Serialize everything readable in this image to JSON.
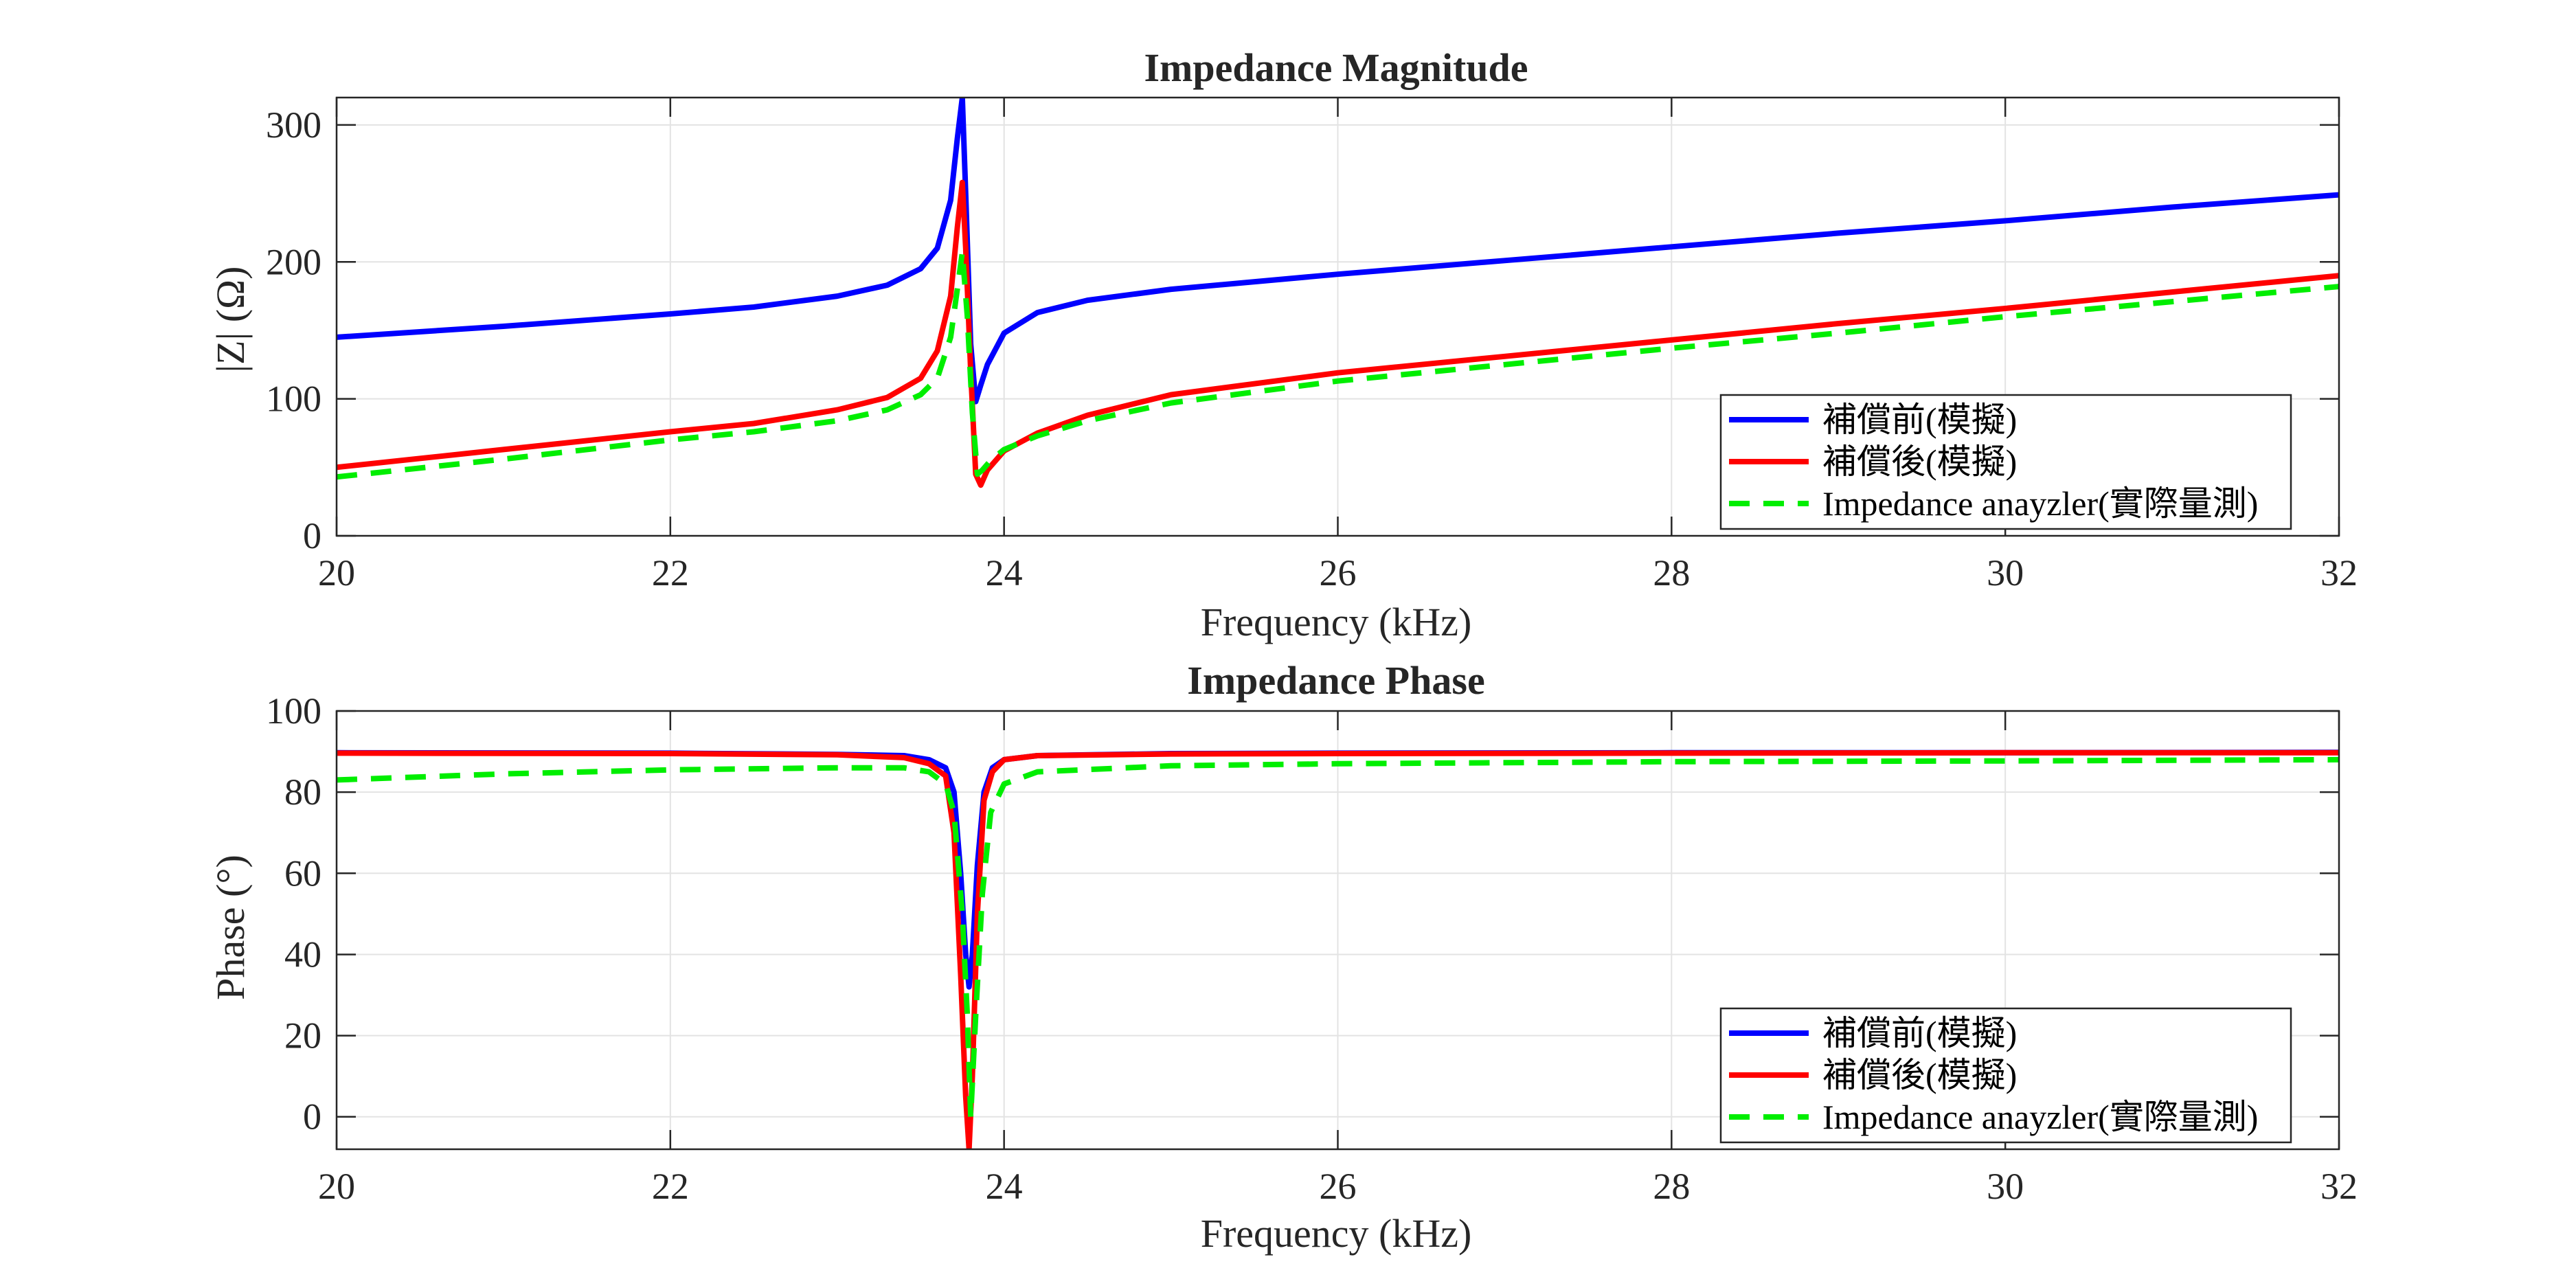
{
  "figure": {
    "background": "#ffffff"
  },
  "chart_data": [
    {
      "type": "line",
      "title": "Impedance Magnitude",
      "xlabel": "Frequency (kHz)",
      "ylabel": "|Z| (Ω)",
      "xlim": [
        20,
        32
      ],
      "ylim": [
        0,
        320
      ],
      "xticks": [
        20,
        22,
        24,
        26,
        28,
        30,
        32
      ],
      "yticks": [
        0,
        100,
        200,
        300
      ],
      "grid": true,
      "legend_position": "bottom-right",
      "series": [
        {
          "name": "補償前(模擬)",
          "color": "#0000ff",
          "dash": "solid",
          "points": [
            [
              20,
              145
            ],
            [
              21,
              153
            ],
            [
              22,
              162
            ],
            [
              22.5,
              167
            ],
            [
              23,
              175
            ],
            [
              23.3,
              183
            ],
            [
              23.5,
              195
            ],
            [
              23.6,
              210
            ],
            [
              23.68,
              245
            ],
            [
              23.72,
              290
            ],
            [
              23.75,
              320
            ],
            [
              23.77,
              250
            ],
            [
              23.8,
              140
            ],
            [
              23.83,
              98
            ],
            [
              23.86,
              110
            ],
            [
              23.9,
              125
            ],
            [
              24,
              148
            ],
            [
              24.2,
              163
            ],
            [
              24.5,
              172
            ],
            [
              25,
              180
            ],
            [
              26,
              191
            ],
            [
              27,
              201
            ],
            [
              28,
              211
            ],
            [
              29,
              221
            ],
            [
              30,
              230
            ],
            [
              31,
              240
            ],
            [
              32,
              249
            ]
          ]
        },
        {
          "name": "補償後(模擬)",
          "color": "#ff0000",
          "dash": "solid",
          "points": [
            [
              20,
              50
            ],
            [
              21,
              63
            ],
            [
              22,
              76
            ],
            [
              22.5,
              82
            ],
            [
              23,
              92
            ],
            [
              23.3,
              101
            ],
            [
              23.5,
              115
            ],
            [
              23.6,
              135
            ],
            [
              23.68,
              175
            ],
            [
              23.72,
              225
            ],
            [
              23.75,
              258
            ],
            [
              23.77,
              210
            ],
            [
              23.8,
              120
            ],
            [
              23.83,
              45
            ],
            [
              23.86,
              37
            ],
            [
              23.9,
              48
            ],
            [
              24,
              62
            ],
            [
              24.2,
              75
            ],
            [
              24.5,
              88
            ],
            [
              25,
              103
            ],
            [
              26,
              119
            ],
            [
              27,
              131
            ],
            [
              28,
              143
            ],
            [
              29,
              155
            ],
            [
              30,
              166
            ],
            [
              31,
              178
            ],
            [
              32,
              190
            ]
          ]
        },
        {
          "name": "Impedance anayzler(實際量測)",
          "color": "#00ee00",
          "dash": "dashed",
          "points": [
            [
              20,
              43
            ],
            [
              21,
              56
            ],
            [
              22,
              70
            ],
            [
              22.5,
              76
            ],
            [
              23,
              84
            ],
            [
              23.3,
              92
            ],
            [
              23.5,
              103
            ],
            [
              23.6,
              115
            ],
            [
              23.68,
              145
            ],
            [
              23.72,
              180
            ],
            [
              23.75,
              207
            ],
            [
              23.78,
              160
            ],
            [
              23.81,
              90
            ],
            [
              23.84,
              45
            ],
            [
              23.87,
              48
            ],
            [
              23.92,
              55
            ],
            [
              24,
              63
            ],
            [
              24.2,
              73
            ],
            [
              24.5,
              84
            ],
            [
              25,
              97
            ],
            [
              26,
              113
            ],
            [
              27,
              125
            ],
            [
              28,
              137
            ],
            [
              29,
              148
            ],
            [
              30,
              160
            ],
            [
              31,
              171
            ],
            [
              32,
              182
            ]
          ]
        }
      ]
    },
    {
      "type": "line",
      "title": "Impedance Phase",
      "xlabel": "Frequency (kHz)",
      "ylabel": "Phase (°)",
      "xlim": [
        20,
        32
      ],
      "ylim": [
        -8,
        100
      ],
      "xticks": [
        20,
        22,
        24,
        26,
        28,
        30,
        32
      ],
      "yticks": [
        0,
        20,
        40,
        60,
        80,
        100
      ],
      "grid": true,
      "legend_position": "bottom-right",
      "series": [
        {
          "name": "補償前(模擬)",
          "color": "#0000ff",
          "dash": "solid",
          "points": [
            [
              20,
              89.7
            ],
            [
              22,
              89.6
            ],
            [
              23,
              89.3
            ],
            [
              23.4,
              89
            ],
            [
              23.55,
              88
            ],
            [
              23.65,
              86
            ],
            [
              23.7,
              80
            ],
            [
              23.74,
              60
            ],
            [
              23.77,
              40
            ],
            [
              23.79,
              32
            ],
            [
              23.81,
              40
            ],
            [
              23.84,
              62
            ],
            [
              23.88,
              80
            ],
            [
              23.93,
              86
            ],
            [
              24,
              88
            ],
            [
              24.2,
              89
            ],
            [
              25,
              89.5
            ],
            [
              26,
              89.6
            ],
            [
              28,
              89.7
            ],
            [
              30,
              89.7
            ],
            [
              32,
              89.8
            ]
          ]
        },
        {
          "name": "補償後(模擬)",
          "color": "#ff0000",
          "dash": "solid",
          "points": [
            [
              20,
              89.6
            ],
            [
              22,
              89.5
            ],
            [
              23,
              89.2
            ],
            [
              23.4,
              88.5
            ],
            [
              23.55,
              87
            ],
            [
              23.65,
              84
            ],
            [
              23.7,
              70
            ],
            [
              23.74,
              35
            ],
            [
              23.77,
              5
            ],
            [
              23.79,
              -8
            ],
            [
              23.81,
              10
            ],
            [
              23.84,
              50
            ],
            [
              23.88,
              78
            ],
            [
              23.93,
              85
            ],
            [
              24,
              88
            ],
            [
              24.2,
              89
            ],
            [
              25,
              89.4
            ],
            [
              26,
              89.5
            ],
            [
              28,
              89.6
            ],
            [
              30,
              89.7
            ],
            [
              32,
              89.7
            ]
          ]
        },
        {
          "name": "Impedance anayzler(實際量測)",
          "color": "#00ee00",
          "dash": "dashed",
          "points": [
            [
              20,
              83
            ],
            [
              21,
              84.5
            ],
            [
              22,
              85.5
            ],
            [
              23,
              86
            ],
            [
              23.4,
              86
            ],
            [
              23.55,
              85
            ],
            [
              23.65,
              82
            ],
            [
              23.7,
              75
            ],
            [
              23.75,
              50
            ],
            [
              23.78,
              25
            ],
            [
              23.8,
              0
            ],
            [
              23.83,
              25
            ],
            [
              23.87,
              55
            ],
            [
              23.92,
              75
            ],
            [
              24,
              82
            ],
            [
              24.2,
              85
            ],
            [
              25,
              86.5
            ],
            [
              26,
              87
            ],
            [
              28,
              87.5
            ],
            [
              30,
              87.7
            ],
            [
              32,
              88
            ]
          ]
        }
      ]
    }
  ]
}
